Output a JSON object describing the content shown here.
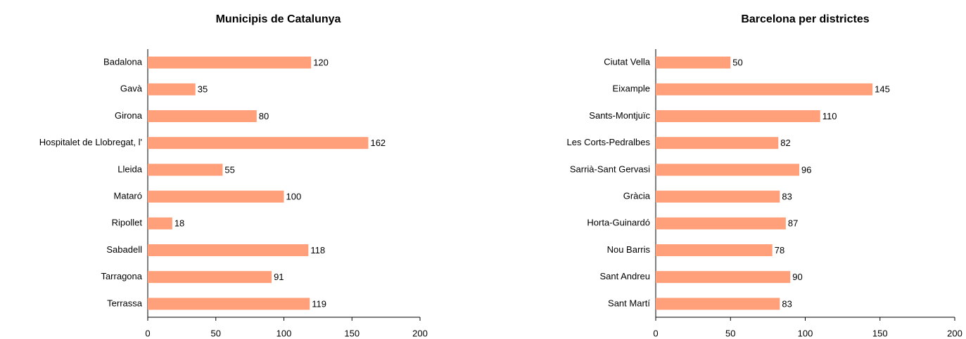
{
  "chart_data": [
    {
      "type": "bar",
      "orientation": "horizontal",
      "title": "Municipis de Catalunya",
      "categories": [
        "Badalona",
        "Gavà",
        "Girona",
        "Hospitalet de Llobregat, l'",
        "Lleida",
        "Mataró",
        "Ripollet",
        "Sabadell",
        "Tarragona",
        "Terrassa"
      ],
      "values": [
        120,
        35,
        80,
        162,
        55,
        100,
        18,
        118,
        91,
        119
      ],
      "color": "#ffa07a",
      "xlim": [
        0,
        200
      ],
      "xticks": [
        0,
        50,
        100,
        150,
        200
      ],
      "grid": false
    },
    {
      "type": "bar",
      "orientation": "horizontal",
      "title": "Barcelona per districtes",
      "categories": [
        "Ciutat Vella",
        "Eixample",
        "Sants-Montjuïc",
        "Les Corts-Pedralbes",
        "Sarrià-Sant Gervasi",
        "Gràcia",
        "Horta-Guinardó",
        "Nou Barris",
        "Sant Andreu",
        "Sant Martí"
      ],
      "values": [
        50,
        145,
        110,
        82,
        96,
        83,
        87,
        78,
        90,
        83
      ],
      "color": "#ffa07a",
      "xlim": [
        0,
        200
      ],
      "xticks": [
        0,
        50,
        100,
        150,
        200
      ],
      "grid": false
    }
  ]
}
